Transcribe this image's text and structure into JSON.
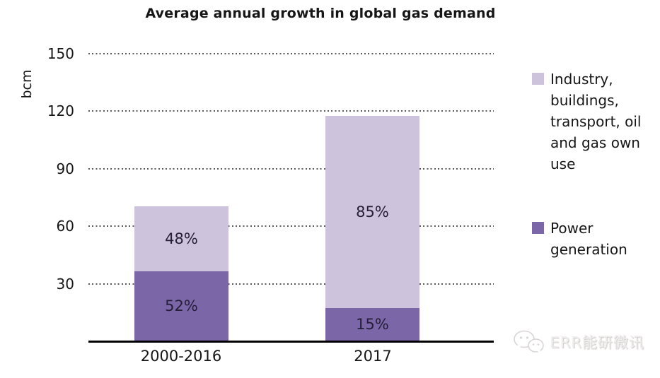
{
  "chart_data": {
    "type": "bar",
    "stacked": true,
    "title": "Average annual growth in global gas demand",
    "xlabel": "",
    "ylabel": "bcm",
    "ylim": [
      0,
      150
    ],
    "yticks": [
      30,
      60,
      90,
      120,
      150
    ],
    "grid": "horizontal dotted",
    "legend_position": "right",
    "categories": [
      "2000-2016",
      "2017"
    ],
    "series": [
      {
        "name": "Industry, buildings, transport, oil and gas own use",
        "values": [
          34.0,
          100.0
        ],
        "percent_labels": [
          "48%",
          "85%"
        ],
        "color": "#cdc3dd"
      },
      {
        "name": "Power generation",
        "values": [
          36.5,
          17.5
        ],
        "percent_labels": [
          "52%",
          "15%"
        ],
        "color": "#7b66a8"
      }
    ],
    "totals_bcm": [
      70.5,
      117.5
    ]
  },
  "legend": {
    "items": [
      {
        "label": "Industry, buildings, transport, oil and gas own use",
        "color": "#cdc3dd"
      },
      {
        "label": "Power generation",
        "color": "#7b66a8"
      }
    ]
  },
  "watermark": {
    "text": "ERR能研微讯",
    "icon": "wechat-icon"
  },
  "colors": {
    "industry_segment": "#cdc3dd",
    "power_segment": "#7b66a8",
    "axis_line": "#000000",
    "gridline": "#595959",
    "text": "#161616",
    "percent_label_text": "#241e38",
    "watermark_text": "#efecec"
  }
}
